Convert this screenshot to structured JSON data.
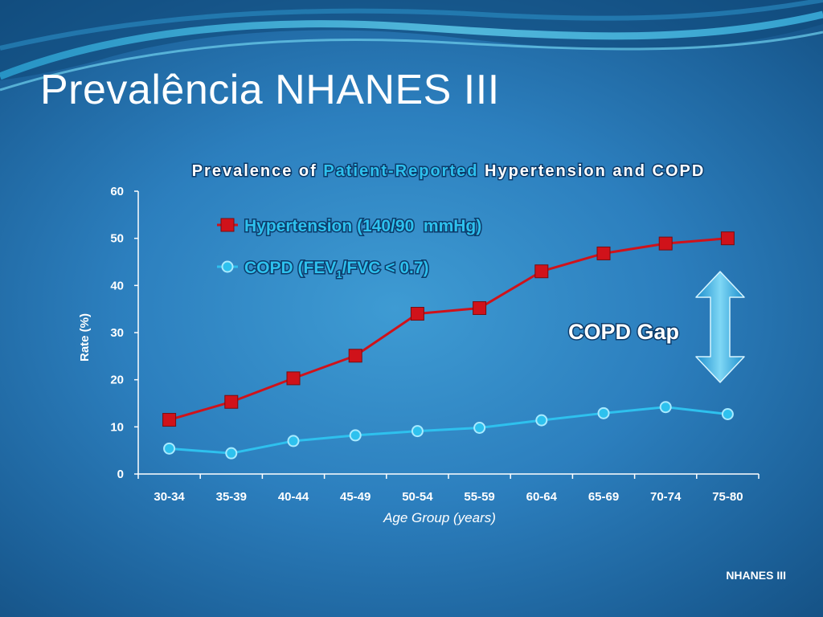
{
  "slide": {
    "title": "Prevalência NHANES III",
    "source": "NHANES III"
  },
  "colors": {
    "hypertension": "#d0121a",
    "copd": "#2ec1ee",
    "gap_arrow": "#4fc0ec"
  },
  "chart_data": {
    "type": "line",
    "title_parts": [
      "Prevalence of ",
      "Patient-Reported",
      " Hypertension and COPD"
    ],
    "xlabel": "Age Group (years)",
    "ylabel": "Rate (%)",
    "categories": [
      "30-34",
      "35-39",
      "40-44",
      "45-49",
      "50-54",
      "55-59",
      "60-64",
      "65-69",
      "70-74",
      "75-80"
    ],
    "ylim": [
      0,
      60
    ],
    "yticks": [
      0,
      10,
      20,
      30,
      40,
      50,
      60
    ],
    "grid": false,
    "legend_position": "top-center",
    "series": [
      {
        "name": "Hypertension (140/90  mmHg)",
        "marker": "square",
        "values": [
          11.5,
          15.3,
          20.3,
          25.1,
          34.0,
          35.2,
          43.0,
          46.8,
          48.9,
          50.0
        ]
      },
      {
        "name_main": "COPD (FEV",
        "name_sub": "1",
        "name_rest": "/FVC < 0.7)",
        "marker": "circle",
        "values": [
          5.4,
          4.4,
          7.0,
          8.2,
          9.1,
          9.8,
          11.4,
          12.9,
          14.2,
          12.7
        ]
      }
    ],
    "annotation": {
      "text": "COPD Gap",
      "icon": "double-headed-vertical-arrow"
    }
  }
}
